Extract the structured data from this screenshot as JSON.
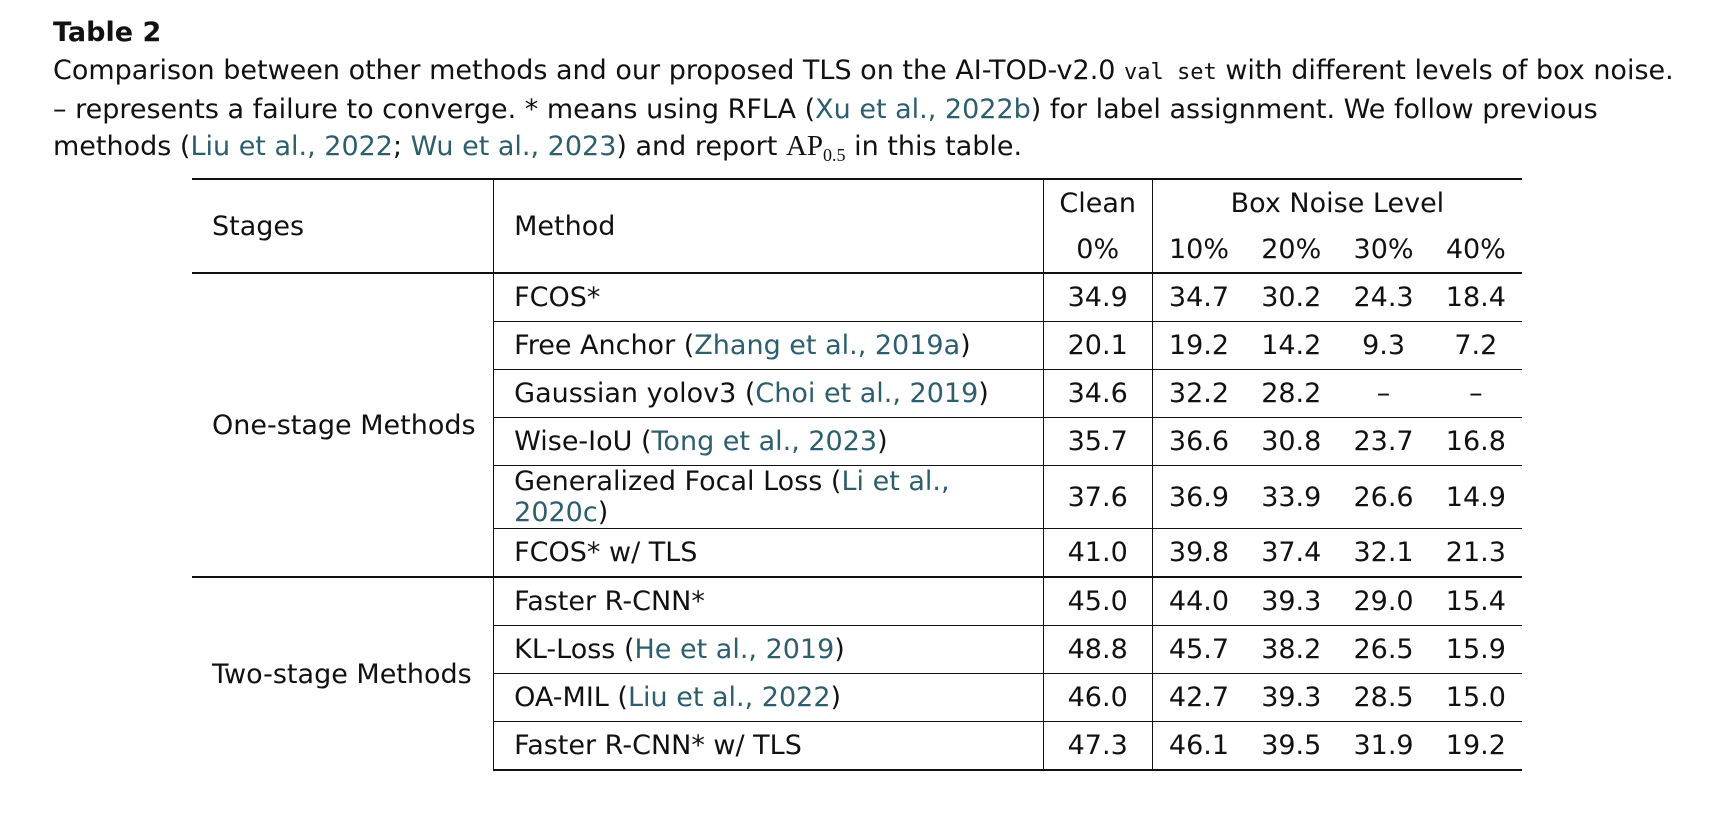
{
  "caption": {
    "title": "Table 2",
    "part1": "Comparison between other methods and our proposed TLS on the AI-TOD-v2.0 ",
    "mono": "val set",
    "part2": " with different levels of box noise. – represents a failure to converge. * means using RFLA (",
    "cite1": "Xu et al., 2022b",
    "part3": ") for label assignment. We follow previous methods (",
    "cite2": "Liu et al., 2022",
    "sep": "; ",
    "cite3": "Wu et al., 2023",
    "part4": ") and report ",
    "ap": "AP",
    "ap_sub": "0.5",
    "part5": " in this table."
  },
  "table": {
    "header": {
      "stages": "Stages",
      "method": "Method",
      "clean": "Clean",
      "clean_pct": "0%",
      "noise": "Box Noise Level",
      "levels": [
        "10%",
        "20%",
        "30%",
        "40%"
      ]
    },
    "groups": [
      {
        "stage": "One-stage Methods",
        "rows": [
          {
            "method": "FCOS*",
            "cite": "",
            "values": [
              "34.9",
              "34.7",
              "30.2",
              "24.3",
              "18.4"
            ],
            "bold": [
              false,
              false,
              false,
              false,
              false
            ]
          },
          {
            "method": "Free Anchor (",
            "cite": "Zhang et al., 2019a",
            "values": [
              "20.1",
              "19.2",
              "14.2",
              "9.3",
              "7.2"
            ],
            "bold": [
              false,
              false,
              false,
              false,
              false
            ]
          },
          {
            "method": "Gaussian yolov3 (",
            "cite": "Choi et al., 2019",
            "values": [
              "34.6",
              "32.2",
              "28.2",
              "–",
              "–"
            ],
            "bold": [
              false,
              false,
              false,
              false,
              false
            ]
          },
          {
            "method": "Wise-IoU (",
            "cite": "Tong et al., 2023",
            "values": [
              "35.7",
              "36.6",
              "30.8",
              "23.7",
              "16.8"
            ],
            "bold": [
              false,
              false,
              false,
              false,
              false
            ]
          },
          {
            "method": "Generalized Focal Loss (",
            "cite": "Li et al., 2020c",
            "values": [
              "37.6",
              "36.9",
              "33.9",
              "26.6",
              "14.9"
            ],
            "bold": [
              false,
              false,
              false,
              false,
              false
            ]
          },
          {
            "method": "FCOS* w/ TLS",
            "cite": "",
            "values": [
              "41.0",
              "39.8",
              "37.4",
              "32.1",
              "21.3"
            ],
            "bold": [
              true,
              true,
              true,
              true,
              true
            ]
          }
        ]
      },
      {
        "stage": "Two-stage Methods",
        "rows": [
          {
            "method": "Faster R-CNN*",
            "cite": "",
            "values": [
              "45.0",
              "44.0",
              "39.3",
              "29.0",
              "15.4"
            ],
            "bold": [
              false,
              false,
              false,
              false,
              false
            ]
          },
          {
            "method": "KL-Loss (",
            "cite": "He et al., 2019",
            "values": [
              "48.8",
              "45.7",
              "38.2",
              "26.5",
              "15.9"
            ],
            "bold": [
              true,
              false,
              false,
              false,
              false
            ]
          },
          {
            "method": "OA-MIL (",
            "cite": "Liu et al., 2022",
            "values": [
              "46.0",
              "42.7",
              "39.3",
              "28.5",
              "15.0"
            ],
            "bold": [
              false,
              false,
              false,
              false,
              false
            ]
          },
          {
            "method": "Faster R-CNN* w/ TLS",
            "cite": "",
            "values": [
              "47.3",
              "46.1",
              "39.5",
              "31.9",
              "19.2"
            ],
            "bold": [
              false,
              true,
              true,
              true,
              true
            ]
          }
        ]
      }
    ]
  }
}
